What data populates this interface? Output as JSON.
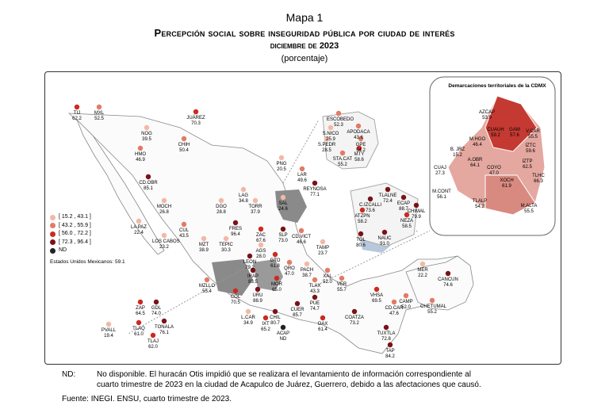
{
  "header": {
    "map_number": "Mapa 1",
    "title": "Percepción social sobre inseguridad pública por ciudad de interés",
    "subtitle": "diciembre de 2023",
    "units": "(porcentaje)"
  },
  "legend": {
    "items": [
      {
        "label": "[ 15.2 , 43.1 ]",
        "color": "#f2b8a6"
      },
      {
        "label": "[ 43.2 , 55.9 ]",
        "color": "#e27a66"
      },
      {
        "label": "[ 56.0 , 72.2 ]",
        "color": "#cc2a20"
      },
      {
        "label": "[ 72.3 , 96.4 ]",
        "color": "#7a1217"
      },
      {
        "label": "ND",
        "color": "#222222"
      }
    ],
    "national": "Estados Unidos Mexicanos:  59.1"
  },
  "cities": [
    {
      "name": "TIJ",
      "value": "62.2"
    },
    {
      "name": "MXL",
      "value": "52.5"
    },
    {
      "name": "NOG",
      "value": "39.5"
    },
    {
      "name": "JUÁREZ",
      "value": "70.3"
    },
    {
      "name": "HMO",
      "value": "46.9"
    },
    {
      "name": "CHIH",
      "value": "50.4"
    },
    {
      "name": "CD.OBR",
      "value": "85.1"
    },
    {
      "name": "MOCH",
      "value": "26.8"
    },
    {
      "name": "LA PAZ",
      "value": "22.4"
    },
    {
      "name": "LOS CABOS",
      "value": "23.2"
    },
    {
      "name": "CUL",
      "value": "43.5"
    },
    {
      "name": "MZT",
      "value": "38.9"
    },
    {
      "name": "DGO",
      "value": "28.8"
    },
    {
      "name": "LAG",
      "value": "34.8"
    },
    {
      "name": "TORR",
      "value": "37.9"
    },
    {
      "name": "SAL",
      "value": "24.6"
    },
    {
      "name": "PNG",
      "value": "20.5"
    },
    {
      "name": "LAR",
      "value": "49.6"
    },
    {
      "name": "REYNOSA",
      "value": "77.1"
    },
    {
      "name": "ESCOBEDO",
      "value": "52.3"
    },
    {
      "name": "S.NICO",
      "value": "25.9"
    },
    {
      "name": "APODACA",
      "value": "43.6"
    },
    {
      "name": "S.PEDR",
      "value": "28.5"
    },
    {
      "name": "GPE",
      "value": "54.2"
    },
    {
      "name": "STA.CAT",
      "value": "55.2"
    },
    {
      "name": "MTY",
      "value": "58.6"
    },
    {
      "name": "TEPIC",
      "value": "30.3"
    },
    {
      "name": "FRES",
      "value": "96.4"
    },
    {
      "name": "ZAC",
      "value": "67.6"
    },
    {
      "name": "SLP",
      "value": "73.0"
    },
    {
      "name": "CD.VICT",
      "value": "46.6"
    },
    {
      "name": "AGS",
      "value": "28.0"
    },
    {
      "name": "LEON",
      "value": "79.2"
    },
    {
      "name": "GTO",
      "value": "61.8"
    },
    {
      "name": "QRO",
      "value": "47.0"
    },
    {
      "name": "IRAP",
      "value": "83.5"
    },
    {
      "name": "MOR",
      "value": "65.0"
    },
    {
      "name": "URU",
      "value": "88.9"
    },
    {
      "name": "TAMP",
      "value": "23.7"
    },
    {
      "name": "PACH",
      "value": "38.7"
    },
    {
      "name": "TLAX",
      "value": "43.3"
    },
    {
      "name": "XAL",
      "value": "52.0"
    },
    {
      "name": "VER",
      "value": "55.7"
    },
    {
      "name": "PUE",
      "value": "74.7"
    },
    {
      "name": "CUER",
      "value": "85.7"
    },
    {
      "name": "CHIL",
      "value": "80.7"
    },
    {
      "name": "ACAP",
      "value": "ND"
    },
    {
      "name": "MZLLO",
      "value": "55.4"
    },
    {
      "name": "COL",
      "value": "70.5"
    },
    {
      "name": "L.CAR",
      "value": "34.9"
    },
    {
      "name": "IXT",
      "value": "65.2"
    },
    {
      "name": "ZAP",
      "value": "64.5"
    },
    {
      "name": "GDL",
      "value": "74.0"
    },
    {
      "name": "TLAQ",
      "value": "61.0"
    },
    {
      "name": "TONALA",
      "value": "76.1"
    },
    {
      "name": "TLAJ",
      "value": "62.0"
    },
    {
      "name": "PVALL",
      "value": "19.4"
    },
    {
      "name": "OAX",
      "value": "61.4"
    },
    {
      "name": "COATZA",
      "value": "73.2"
    },
    {
      "name": "VHSA",
      "value": "69.5"
    },
    {
      "name": "CD.CAR",
      "value": "47.6"
    },
    {
      "name": "CAMP",
      "value": "52.0"
    },
    {
      "name": "TUXTLA",
      "value": "72.8"
    },
    {
      "name": "TAP",
      "value": "84.2"
    },
    {
      "name": "MER",
      "value": "22.2"
    },
    {
      "name": "CANCUN",
      "value": "74.6"
    },
    {
      "name": "CHETUMAL",
      "value": "55.2"
    },
    {
      "name": "TLALNE",
      "value": "72.4"
    },
    {
      "name": "C.IZCALLI",
      "value": "73.6"
    },
    {
      "name": "ECAP",
      "value": "88.7"
    },
    {
      "name": "CHIMAL",
      "value": "79.9"
    },
    {
      "name": "ATZPN",
      "value": "58.2"
    },
    {
      "name": "NEZA",
      "value": "58.5"
    },
    {
      "name": "TOL",
      "value": "80.6"
    },
    {
      "name": "NAUC",
      "value": "91.0"
    }
  ],
  "inset": {
    "title": "Demarcaciones territoriales de la CDMX",
    "districts": [
      {
        "name": "AZCAP",
        "value": "53.9"
      },
      {
        "name": "GAM",
        "value": "57.6"
      },
      {
        "name": "CUAUH",
        "value": "59.2"
      },
      {
        "name": "V.CAR",
        "value": "55.5"
      },
      {
        "name": "M.HGO",
        "value": "46.4"
      },
      {
        "name": "IZTC",
        "value": "59.6"
      },
      {
        "name": "B. JRZ",
        "value": "15.2"
      },
      {
        "name": "CUAJ",
        "value": "27.3"
      },
      {
        "name": "A.OBR",
        "value": "64.1"
      },
      {
        "name": "COYO",
        "value": "47.0"
      },
      {
        "name": "IZTP",
        "value": "62.5"
      },
      {
        "name": "TLHC",
        "value": "66.3"
      },
      {
        "name": "XOCH",
        "value": "61.9"
      },
      {
        "name": "M.CONT",
        "value": "56.1"
      },
      {
        "name": "TLALP",
        "value": "54.2"
      },
      {
        "name": "M.ALTA",
        "value": "55.5"
      }
    ]
  },
  "notes": {
    "nd_key": "ND:",
    "nd_text": "No disponible. El huracán Otis impidió que se realizara el levantamiento de información correspondiente al",
    "nd_text_2": "cuarto trimestre de 2023 en la ciudad de Acapulco de Juárez, Guerrero, debido a las afectaciones que causó.",
    "source": "Fuente: INEGI. ENSU, cuarto trimestre de 2023."
  }
}
